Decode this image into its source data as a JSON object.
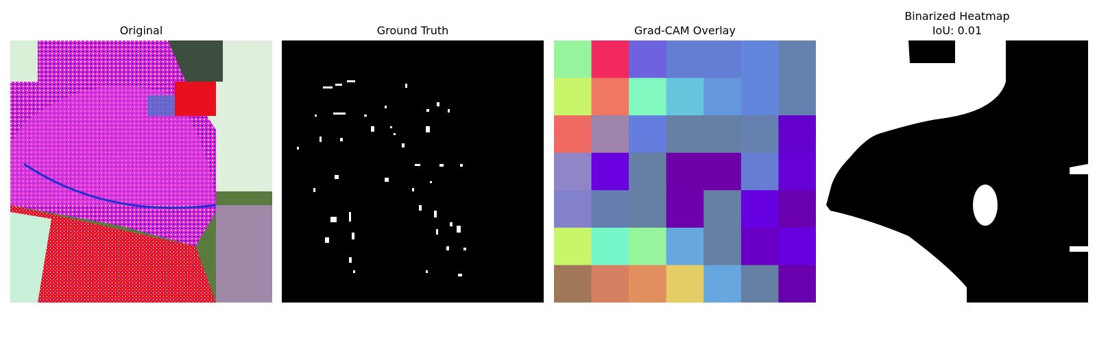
{
  "panels": {
    "original": {
      "title": "Original"
    },
    "ground_truth": {
      "title": "Ground Truth"
    },
    "gradcam": {
      "title": "Grad-CAM Overlay",
      "grid": [
        [
          "#96f59c",
          "#f2295f",
          "#6d63de",
          "#637dd3",
          "#637dd3",
          "#6386dc",
          "#6680b0"
        ],
        [
          "#c9f56b",
          "#f07863",
          "#80f8c0",
          "#66c5dc",
          "#6399dc",
          "#6386dc",
          "#6680b0"
        ],
        [
          "#ee6a62",
          "#9d84aa",
          "#667de0",
          "#6680a3",
          "#6680a3",
          "#6680b0",
          "#6400cc"
        ],
        [
          "#9086c7",
          "#6a00df",
          "#6680a3",
          "#6d00a9",
          "#6d00a9",
          "#667dd3",
          "#6600d6"
        ],
        [
          "#8380cc",
          "#667db0",
          "#6680a3",
          "#6d00ac",
          "#6680a3",
          "#6600e0",
          "#6a00ad"
        ],
        [
          "#c9f56b",
          "#75f7c9",
          "#96f59c",
          "#66a7e0",
          "#6680a3",
          "#6a00c4",
          "#6600df"
        ],
        [
          "#a07758",
          "#d77f61",
          "#e18f5f",
          "#e6cc65",
          "#66a7e0",
          "#6680a3",
          "#6a00ad"
        ]
      ]
    },
    "binarized": {
      "title_line1": "Binarized Heatmap",
      "title_line2": "IoU: 0.01"
    }
  }
}
